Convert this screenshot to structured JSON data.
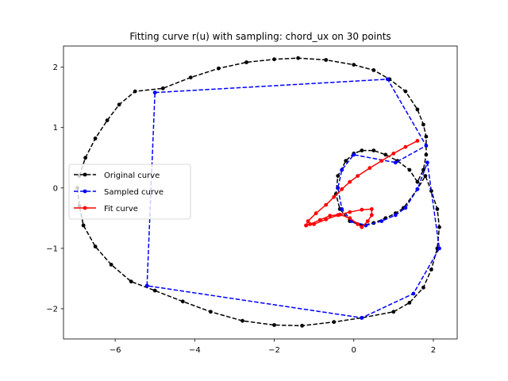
{
  "chart_data": {
    "type": "line",
    "title": "Fitting curve r(u) with sampling: chord_ux on 30 points",
    "xlabel": "",
    "ylabel": "",
    "xlim": [
      -7.3,
      2.6
    ],
    "ylim": [
      -2.5,
      2.35
    ],
    "x_ticks": [
      -6,
      -4,
      -2,
      0,
      2
    ],
    "y_ticks": [
      -2,
      -1,
      0,
      1,
      2
    ],
    "x_tick_labels": [
      "−6",
      "−4",
      "−2",
      "0",
      "2"
    ],
    "y_tick_labels": [
      "−2",
      "−1",
      "0",
      "1",
      "2"
    ],
    "grid": false,
    "legend_position": "center-left",
    "series": [
      {
        "name": "Original curve",
        "color": "#000000",
        "style": "dashed",
        "marker": "dot",
        "points": [
          [
            -6.9,
            0.2
          ],
          [
            -6.75,
            0.5
          ],
          [
            -6.5,
            0.82
          ],
          [
            -6.2,
            1.12
          ],
          [
            -5.9,
            1.38
          ],
          [
            -5.5,
            1.6
          ],
          [
            -4.8,
            1.65
          ],
          [
            -4.1,
            1.83
          ],
          [
            -3.4,
            1.98
          ],
          [
            -2.7,
            2.08
          ],
          [
            -2.0,
            2.13
          ],
          [
            -1.4,
            2.15
          ],
          [
            -0.7,
            2.12
          ],
          [
            0.0,
            2.04
          ],
          [
            0.5,
            1.95
          ],
          [
            0.9,
            1.8
          ],
          [
            1.3,
            1.6
          ],
          [
            1.6,
            1.3
          ],
          [
            1.75,
            1.05
          ],
          [
            1.82,
            0.85
          ],
          [
            1.82,
            0.55
          ],
          [
            1.75,
            0.3
          ],
          [
            1.6,
            0.1
          ],
          [
            1.4,
            0.3
          ],
          [
            1.1,
            0.45
          ],
          [
            0.8,
            0.55
          ],
          [
            0.5,
            0.62
          ],
          [
            0.2,
            0.62
          ],
          [
            0.0,
            0.57
          ],
          [
            -0.2,
            0.45
          ],
          [
            -0.4,
            0.2
          ],
          [
            -0.45,
            -0.1
          ],
          [
            -0.35,
            -0.35
          ],
          [
            -0.1,
            -0.55
          ],
          [
            0.2,
            -0.62
          ],
          [
            0.5,
            -0.58
          ],
          [
            0.8,
            -0.5
          ],
          [
            1.05,
            -0.42
          ],
          [
            1.25,
            -0.33
          ],
          [
            1.6,
            -0.02
          ],
          [
            1.8,
            0.2
          ],
          [
            1.95,
            -0.05
          ],
          [
            2.1,
            -0.35
          ],
          [
            2.15,
            -0.65
          ],
          [
            2.1,
            -1.0
          ],
          [
            1.95,
            -1.35
          ],
          [
            1.75,
            -1.65
          ],
          [
            1.4,
            -1.9
          ],
          [
            1.0,
            -2.05
          ],
          [
            0.2,
            -2.15
          ],
          [
            -0.5,
            -2.22
          ],
          [
            -1.3,
            -2.28
          ],
          [
            -2.0,
            -2.27
          ],
          [
            -2.8,
            -2.2
          ],
          [
            -3.6,
            -2.05
          ],
          [
            -4.3,
            -1.88
          ],
          [
            -5.0,
            -1.7
          ],
          [
            -5.6,
            -1.55
          ],
          [
            -6.1,
            -1.27
          ],
          [
            -6.5,
            -0.97
          ],
          [
            -6.8,
            -0.62
          ],
          [
            -6.9,
            -0.3
          ],
          [
            -6.95,
            0.0
          ]
        ]
      },
      {
        "name": "Sampled curve",
        "color": "#0000ff",
        "style": "dashed",
        "marker": "dot",
        "points": [
          [
            -5.0,
            1.58
          ],
          [
            0.85,
            1.8
          ],
          [
            1.82,
            0.7
          ],
          [
            1.05,
            0.42
          ],
          [
            0.0,
            0.55
          ],
          [
            -0.3,
            0.3
          ],
          [
            -0.4,
            0.0
          ],
          [
            -0.3,
            -0.35
          ],
          [
            -0.05,
            -0.55
          ],
          [
            0.3,
            -0.62
          ],
          [
            0.7,
            -0.55
          ],
          [
            1.05,
            -0.45
          ],
          [
            1.3,
            -0.33
          ],
          [
            1.6,
            -0.02
          ],
          [
            1.85,
            0.42
          ],
          [
            2.15,
            -1.0
          ],
          [
            1.5,
            -1.75
          ],
          [
            0.2,
            -2.15
          ],
          [
            -5.2,
            -1.62
          ],
          [
            -5.0,
            1.58
          ]
        ]
      },
      {
        "name": "Fit curve",
        "color": "#ff0000",
        "style": "solid",
        "marker": "dot",
        "points": [
          [
            1.6,
            0.78
          ],
          [
            1.3,
            0.68
          ],
          [
            1.0,
            0.57
          ],
          [
            0.7,
            0.45
          ],
          [
            0.4,
            0.33
          ],
          [
            0.1,
            0.2
          ],
          [
            -0.1,
            0.1
          ],
          [
            -0.3,
            -0.02
          ],
          [
            -0.5,
            -0.15
          ],
          [
            -0.7,
            -0.28
          ],
          [
            -0.95,
            -0.42
          ],
          [
            -1.15,
            -0.55
          ],
          [
            -1.2,
            -0.62
          ],
          [
            -1.0,
            -0.6
          ],
          [
            -0.7,
            -0.52
          ],
          [
            -0.4,
            -0.45
          ],
          [
            -0.1,
            -0.4
          ],
          [
            0.2,
            -0.36
          ],
          [
            0.45,
            -0.35
          ],
          [
            0.45,
            -0.45
          ],
          [
            0.35,
            -0.55
          ],
          [
            0.2,
            -0.65
          ],
          [
            0.1,
            -0.6
          ],
          [
            -0.1,
            -0.5
          ],
          [
            -0.35,
            -0.44
          ],
          [
            -0.6,
            -0.46
          ],
          [
            -0.85,
            -0.53
          ],
          [
            -1.1,
            -0.6
          ],
          [
            -1.2,
            -0.62
          ]
        ]
      }
    ]
  }
}
